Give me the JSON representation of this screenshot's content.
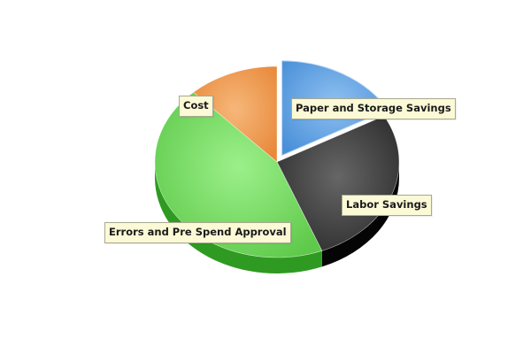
{
  "chart_data": {
    "type": "pie",
    "title": "",
    "slices": [
      {
        "label": "Paper and Storage Savings",
        "value": 17,
        "color": "#4a90d9",
        "dark": "#2a63a8",
        "light": "#8ec0f0",
        "exploded": true
      },
      {
        "label": "Labor Savings",
        "value": 27,
        "color": "#2c2c2c",
        "dark": "#050505",
        "light": "#666666",
        "exploded": false
      },
      {
        "label": "Errors and Pre Spend Approval",
        "value": 44,
        "color": "#5ec94a",
        "dark": "#2f9a22",
        "light": "#9cf08a",
        "exploded": false
      },
      {
        "label": "Cost",
        "value": 12,
        "color": "#e8893a",
        "dark": "#a55010",
        "light": "#f6b77a",
        "exploded": false
      }
    ],
    "style": "3d"
  }
}
